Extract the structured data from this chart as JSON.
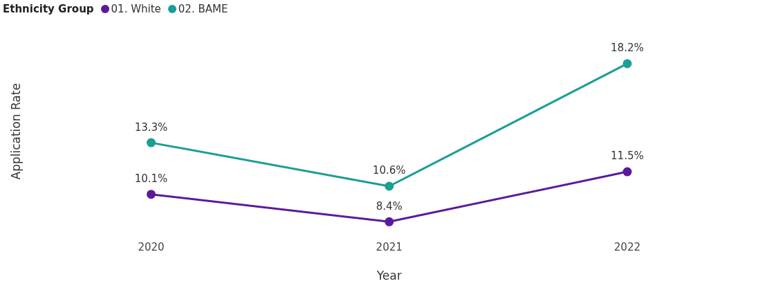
{
  "chart_data": {
    "type": "line",
    "legend_title": "Ethnicity Group",
    "xlabel": "Year",
    "ylabel": "Application Rate",
    "categories": [
      "2020",
      "2021",
      "2022"
    ],
    "series": [
      {
        "name": "01. White",
        "color": "#5b1a9c",
        "values": [
          10.1,
          8.4,
          11.5
        ],
        "value_labels": [
          "10.1%",
          "8.4%",
          "11.5%"
        ]
      },
      {
        "name": "02. BAME",
        "color": "#1a9e96",
        "values": [
          13.3,
          10.6,
          18.2
        ],
        "value_labels": [
          "13.3%",
          "10.6%",
          "18.2%"
        ]
      }
    ],
    "tick_labels": "x",
    "grid": false,
    "legend": "top left",
    "marker": "circle",
    "line_style": "solid"
  }
}
